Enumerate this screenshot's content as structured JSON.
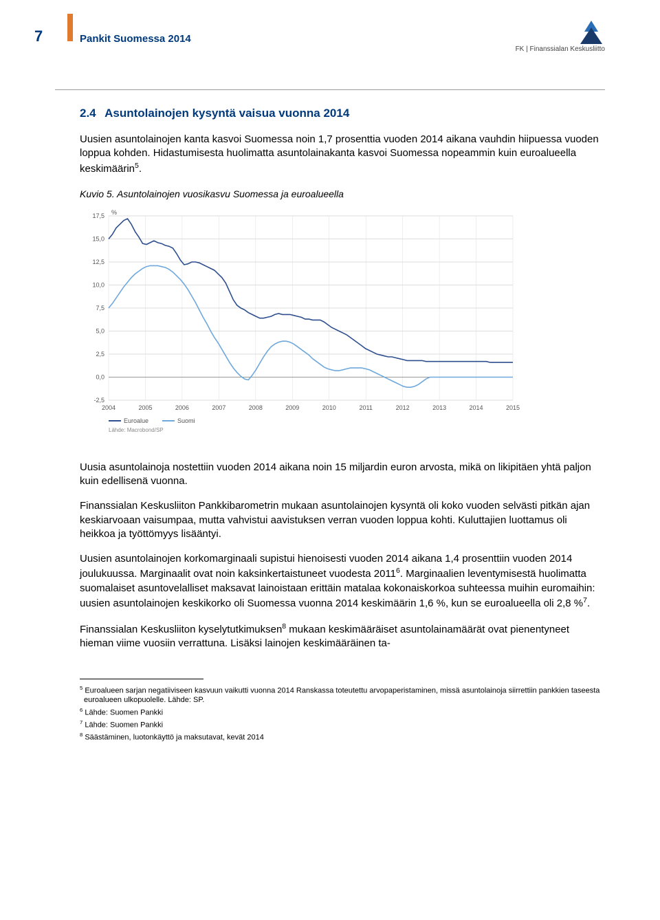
{
  "header": {
    "page_number": "7",
    "doc_title": "Pankit Suomessa 2014",
    "logo_text": "FK | Finanssialan Keskusliitto",
    "logo_color_top": "#2a6db7",
    "logo_color_bottom": "#1a3a6a"
  },
  "section": {
    "number": "2.4",
    "title": "Asuntolainojen kysyntä vaisua vuonna 2014"
  },
  "para1": "Uusien asuntolainojen kanta kasvoi Suomessa noin 1,7 prosenttia vuoden 2014 aikana vauhdin hiipuessa vuoden loppua kohden. Hidastumisesta huolimatta asuntolainakanta kasvoi Suomessa nopeammin kuin euroalueella keskimäärin",
  "para1_fn": "5",
  "para1_end": ".",
  "figure": {
    "caption": "Kuvio 5. Asuntolainojen vuosikasvu Suomessa ja euroalueella",
    "y_label": "%",
    "y_ticks": [
      17.5,
      15.0,
      12.5,
      10.0,
      7.5,
      5.0,
      2.5,
      0.0,
      -2.5
    ],
    "x_ticks": [
      "2004",
      "2005",
      "2006",
      "2007",
      "2008",
      "2009",
      "2010",
      "2011",
      "2012",
      "2013",
      "2014",
      "2015"
    ],
    "y_min": -2.5,
    "y_max": 17.5,
    "background_color": "#ffffff",
    "grid_color": "#dddddd",
    "axis_font_size": 9,
    "legend_items": [
      "Euroalue",
      "Suomi"
    ],
    "source_text": "Lähde: Macrobond/SP",
    "series": [
      {
        "name": "Suomi",
        "color": "#2e4f8f",
        "width": 1.6,
        "values": [
          15.0,
          15.5,
          16.2,
          16.6,
          17.0,
          17.2,
          16.6,
          15.8,
          15.2,
          14.5,
          14.4,
          14.6,
          14.8,
          14.6,
          14.5,
          14.3,
          14.2,
          14.0,
          13.4,
          12.7,
          12.2,
          12.3,
          12.5,
          12.5,
          12.4,
          12.2,
          12.0,
          11.8,
          11.6,
          11.2,
          10.8,
          10.2,
          9.3,
          8.4,
          7.8,
          7.5,
          7.3,
          7.0,
          6.8,
          6.6,
          6.4,
          6.4,
          6.5,
          6.6,
          6.8,
          6.9,
          6.8,
          6.8,
          6.8,
          6.7,
          6.6,
          6.5,
          6.3,
          6.3,
          6.2,
          6.2,
          6.2,
          6.0,
          5.7,
          5.4,
          5.2,
          5.0,
          4.8,
          4.6,
          4.3,
          4.0,
          3.7,
          3.4,
          3.1,
          2.9,
          2.7,
          2.5,
          2.4,
          2.3,
          2.2,
          2.2,
          2.1,
          2.0,
          1.9,
          1.8,
          1.8,
          1.8,
          1.8,
          1.8,
          1.7,
          1.7,
          1.7,
          1.7,
          1.7,
          1.7,
          1.7,
          1.7,
          1.7,
          1.7,
          1.7,
          1.7,
          1.7,
          1.7,
          1.7,
          1.7,
          1.7,
          1.6,
          1.6,
          1.6,
          1.6,
          1.6,
          1.6,
          1.6
        ]
      },
      {
        "name": "Euroalue",
        "color": "#6fa8dc",
        "width": 1.6,
        "values": [
          7.5,
          8.0,
          8.6,
          9.2,
          9.8,
          10.3,
          10.8,
          11.2,
          11.5,
          11.8,
          12.0,
          12.1,
          12.1,
          12.1,
          12.0,
          11.9,
          11.7,
          11.4,
          11.0,
          10.6,
          10.1,
          9.5,
          8.8,
          8.1,
          7.3,
          6.5,
          5.8,
          5.0,
          4.3,
          3.7,
          3.0,
          2.3,
          1.6,
          1.0,
          0.5,
          0.1,
          -0.2,
          -0.3,
          0.2,
          0.8,
          1.5,
          2.2,
          2.8,
          3.3,
          3.6,
          3.8,
          3.9,
          3.9,
          3.8,
          3.6,
          3.3,
          3.0,
          2.7,
          2.4,
          2.0,
          1.7,
          1.4,
          1.1,
          0.9,
          0.8,
          0.7,
          0.7,
          0.8,
          0.9,
          1.0,
          1.0,
          1.0,
          1.0,
          0.9,
          0.8,
          0.6,
          0.4,
          0.2,
          0.0,
          -0.2,
          -0.4,
          -0.6,
          -0.8,
          -1.0,
          -1.1,
          -1.1,
          -1.0,
          -0.8,
          -0.5,
          -0.2,
          0.0,
          0.0,
          0.0,
          0.0,
          0.0,
          0.0,
          0.0,
          0.0,
          0.0,
          0.0,
          0.0,
          0.0,
          0.0,
          0.0,
          0.0,
          0.0,
          0.0,
          0.0,
          0.0,
          0.0,
          0.0,
          0.0,
          0.0
        ]
      }
    ]
  },
  "para2": "Uusia asuntolainoja nostettiin vuoden 2014 aikana noin 15 miljardin euron arvosta, mikä on likipitäen yhtä paljon kuin edellisenä vuonna.",
  "para3": "Finanssialan Keskusliiton Pankkibarometrin mukaan asuntolainojen kysyntä oli koko vuoden selvästi pitkän ajan keskiarvoaan vaisumpaa, mutta vahvistui aavistuksen verran vuoden loppua kohti. Kuluttajien luottamus oli heikkoa ja työttömyys lisääntyi.",
  "para4a": "Uusien asuntolainojen korkomarginaali supistui hienoisesti vuoden 2014 aikana 1,4 prosenttiin vuoden 2014 joulukuussa. Marginaalit ovat noin kaksinkertaistuneet vuodesta 2011",
  "para4a_fn": "6",
  "para4b": ". Marginaalien leventymisestä huolimatta suomalaiset asuntovelalliset maksavat lainoistaan erittäin matalaa kokonaiskorkoa suhteessa muihin euromaihin: uusien asuntolainojen keskikorko oli Suomessa vuonna 2014 keskimäärin 1,6 %, kun se euroalueella oli 2,8 %",
  "para4b_fn": "7",
  "para4c": ".",
  "para5a": "Finanssialan Keskusliiton kyselytutkimuksen",
  "para5_fn": "8",
  "para5b": " mukaan keskimääräiset asuntolainamäärät ovat pienentyneet hieman viime vuosiin verrattuna. Lisäksi lainojen keskimääräinen ta-",
  "footnotes": {
    "f5_pre": "5",
    "f5": " Euroalueen sarjan negatiiviseen kasvuun vaikutti vuonna 2014 Ranskassa toteutettu arvopaperistaminen, missä asuntolainoja siirrettiin pankkien taseesta euroalueen ulkopuolelle. Lähde: SP.",
    "f6_pre": "6",
    "f6": " Lähde: Suomen Pankki",
    "f7_pre": "7",
    "f7": " Lähde: Suomen Pankki",
    "f8_pre": "8",
    "f8": " Säästäminen, luotonkäyttö ja maksutavat, kevät 2014"
  }
}
